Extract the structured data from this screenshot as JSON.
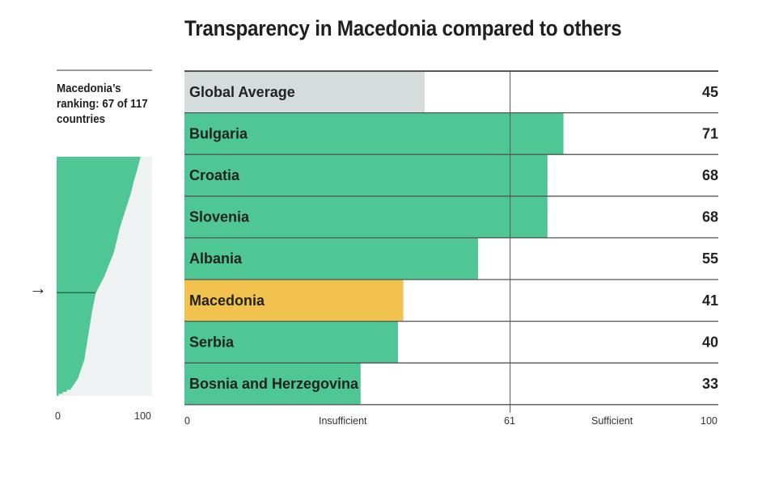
{
  "title": "Transparency in Macedonia compared to others",
  "ranking_caption": "Macedonia’s ranking: 67 of 117 countries",
  "colors": {
    "green": "#4fc795",
    "highlight": "#f2c24f",
    "average": "#d5dcdc",
    "rank_background": "#eef2f2",
    "divider": "#555555"
  },
  "chart_data": [
    {
      "type": "bar",
      "orientation": "horizontal",
      "title": "Transparency in Macedonia compared to others",
      "categories": [
        "Global Average",
        "Bulgaria",
        "Croatia",
        "Slovenia",
        "Albania",
        "Macedonia",
        "Serbia",
        "Bosnia and Herzegovina"
      ],
      "values": [
        45,
        71,
        68,
        68,
        55,
        41,
        40,
        33
      ],
      "bar_colors": [
        "average",
        "green",
        "green",
        "green",
        "green",
        "highlight",
        "green",
        "green"
      ],
      "xlim": [
        0,
        100
      ],
      "threshold": 61,
      "tick_labels": [
        "0",
        "Insufficient",
        "61",
        "Sufficient",
        "100"
      ],
      "grid": false,
      "legend": "none"
    },
    {
      "type": "area",
      "title": "Macedonia’s ranking: 67 of 117 countries",
      "xlim": [
        0,
        100
      ],
      "x_tick_labels": [
        "0",
        "100"
      ],
      "rank_total": 117,
      "highlight_rank": 67,
      "highlight_score": 41,
      "score_quantiles": [
        [
          0.0,
          88
        ],
        [
          0.03,
          86
        ],
        [
          0.06,
          84
        ],
        [
          0.1,
          81
        ],
        [
          0.15,
          78
        ],
        [
          0.2,
          74
        ],
        [
          0.25,
          70
        ],
        [
          0.3,
          66
        ],
        [
          0.35,
          63
        ],
        [
          0.4,
          60
        ],
        [
          0.45,
          55
        ],
        [
          0.5,
          50
        ],
        [
          0.57,
          41
        ],
        [
          0.65,
          37
        ],
        [
          0.75,
          33
        ],
        [
          0.85,
          29
        ],
        [
          0.93,
          22
        ],
        [
          0.97,
          15
        ],
        [
          1.0,
          0
        ]
      ]
    }
  ]
}
